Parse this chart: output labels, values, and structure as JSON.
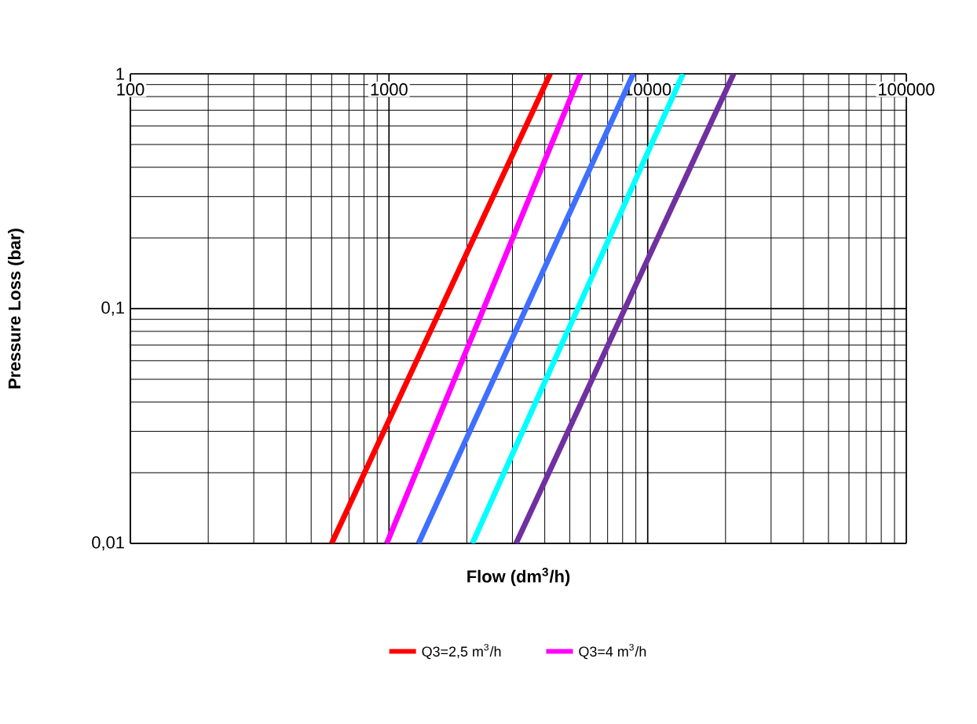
{
  "chart_data": {
    "type": "line",
    "xlabel": "Flow (dm$^{3}$/h)",
    "ylabel": "Pressure Loss (bar)",
    "log": "xy",
    "grid": true,
    "legend": "bottom",
    "marker": "none",
    "line_style": "solid",
    "xlim": [
      100,
      100000
    ],
    "ylim": [
      0.01,
      1
    ],
    "xticks": [
      100,
      1000,
      10000,
      100000
    ],
    "yticks": [
      {
        "value": 0.01,
        "label": "0,01"
      },
      {
        "value": 0.1,
        "label": "0,1"
      },
      1
    ],
    "series": [
      {
        "name": "Q3=2,5 m$^{3}$/h",
        "color": "#ff0000",
        "x": [
          600,
          4200
        ],
        "values": [
          0.01,
          1
        ]
      },
      {
        "name": "Q3=4 m$^{3}$/h",
        "color": "#ff00ff",
        "x": [
          980,
          5500
        ],
        "values": [
          0.01,
          1
        ]
      },
      {
        "color": "#3f6fff",
        "x": [
          1300,
          8800
        ],
        "values": [
          0.01,
          1
        ]
      },
      {
        "color": "#00ffff",
        "x": [
          2100,
          13700
        ],
        "values": [
          0.01,
          1
        ]
      },
      {
        "color": "#7030a0",
        "x": [
          3100,
          21500
        ],
        "values": [
          0.01,
          1
        ]
      }
    ]
  }
}
